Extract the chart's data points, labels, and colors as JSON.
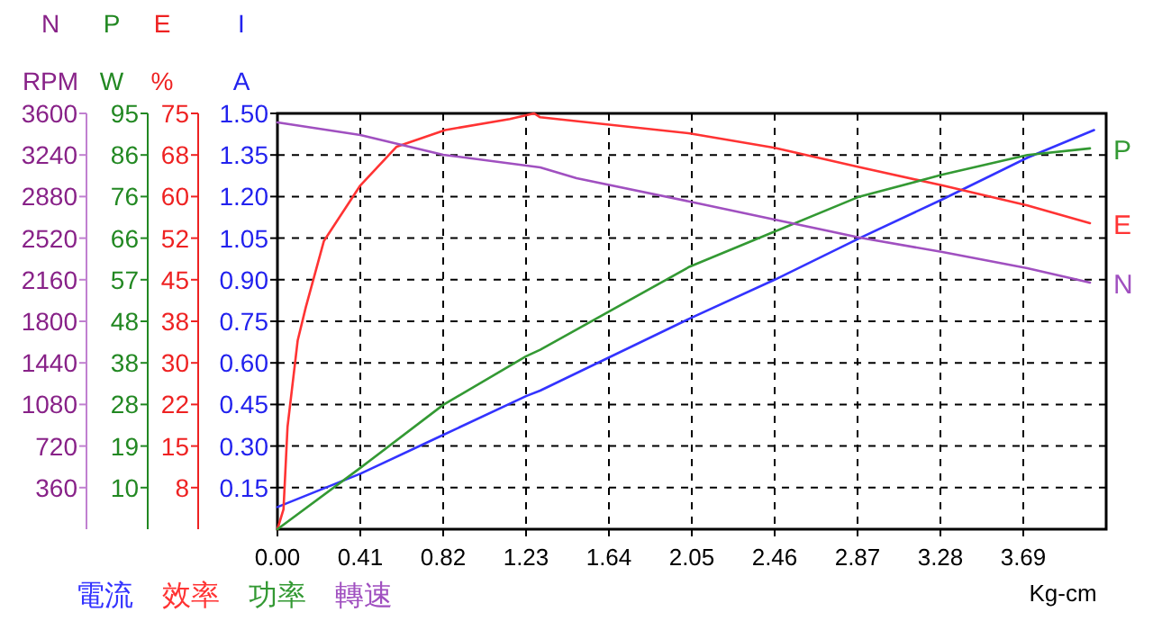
{
  "chart_data": [
    {
      "type": "line",
      "xlabel": "Kg-cm",
      "ylabel": "I\nA",
      "y2label": "E\n%",
      "y3label": "P\nW",
      "xlim": [
        0,
        4.1
      ],
      "xticks": [
        {
          "value": 0,
          "label": "0.00"
        },
        {
          "value": 0.41,
          "label": "0.41"
        },
        {
          "value": 0.82,
          "label": "0.82"
        },
        {
          "value": 1.23,
          "label": "1.23"
        },
        {
          "value": 1.64,
          "label": "1.64"
        },
        {
          "value": 2.05,
          "label": "2.05"
        },
        {
          "value": 2.46,
          "label": "2.46"
        },
        {
          "value": 2.87,
          "label": "2.87"
        },
        {
          "value": 3.28,
          "label": "3.28"
        },
        {
          "value": 3.69,
          "label": "3.69"
        }
      ],
      "ylim": [
        0,
        1.5
      ],
      "yticks": [
        {
          "value": 0.15,
          "label": "0.15"
        },
        {
          "value": 0.3,
          "label": "0.30"
        },
        {
          "value": 0.45,
          "label": "0.45"
        },
        {
          "value": 0.6,
          "label": "0.60"
        },
        {
          "value": 0.75,
          "label": "0.75"
        },
        {
          "value": 0.9,
          "label": "0.90"
        },
        {
          "value": 1.05,
          "label": "1.05"
        },
        {
          "value": 1.2,
          "label": "1.20"
        },
        {
          "value": 1.35,
          "label": "1.35"
        },
        {
          "value": 1.5,
          "label": "1.50"
        }
      ],
      "y2lim": [
        0,
        75
      ],
      "y2ticks": [
        {
          "value": 7.5,
          "label": "8"
        },
        15,
        {
          "value": 22.5,
          "label": "22"
        },
        30,
        {
          "value": 37.5,
          "label": "38"
        },
        45,
        {
          "value": 52.5,
          "label": "52"
        },
        60,
        {
          "value": 67.5,
          "label": "68"
        },
        75
      ],
      "y3lim": [
        0,
        95
      ],
      "y3ticks": [
        {
          "value": 9.5,
          "label": "10"
        },
        19,
        {
          "value": 28.5,
          "label": "28"
        },
        38,
        {
          "value": 47.5,
          "label": "48"
        },
        57,
        {
          "value": 66.5,
          "label": "66"
        },
        76,
        {
          "value": 85.5,
          "label": "86"
        },
        95
      ],
      "grid": true,
      "legend": "bottom",
      "line_style": "solid",
      "marker": "none",
      "series": [
        {
          "name": "電流",
          "color": "#3333ff",
          "x": [
            0,
            0.41,
            0.82,
            1.23,
            1.3,
            2.04,
            2.46,
            2.88,
            3.29,
            3.71,
            4.04
          ],
          "values": [
            0.08,
            0.2,
            0.34,
            0.48,
            0.5,
            0.76,
            0.9,
            1.05,
            1.19,
            1.34,
            1.44
          ]
        },
        {
          "name": "效率",
          "color": "#ff3333",
          "axis": "y2",
          "x": [
            0,
            0.03,
            0.05,
            0.1,
            0.14,
            0.23,
            0.41,
            0.59,
            0.83,
            1.15,
            1.27,
            1.3,
            2.04,
            2.46,
            2.88,
            3.29,
            3.71,
            4.02
          ],
          "values": [
            0,
            3.6,
            18.5,
            34,
            40,
            52,
            62,
            69,
            72,
            74,
            75,
            74.3,
            71.4,
            68.8,
            65.3,
            62,
            58.4,
            55.2
          ]
        },
        {
          "name": "功率",
          "color": "#339933",
          "axis": "y3",
          "x": [
            0,
            0.41,
            0.82,
            1.23,
            1.3,
            2.04,
            2.46,
            2.88,
            3.29,
            3.71,
            4.02
          ],
          "values": [
            0,
            14,
            28.4,
            39.5,
            41,
            60,
            68,
            76,
            81,
            85.5,
            87
          ]
        }
      ],
      "annotations": [
        "E",
        "P"
      ]
    },
    {
      "type": "line",
      "ylabel": "N\nRPM",
      "xlim": [
        0,
        4.1
      ],
      "ylim": [
        0,
        3600
      ],
      "yticks": [
        360,
        720,
        1080,
        1440,
        1800,
        2160,
        2520,
        2880,
        3240,
        3600
      ],
      "tick_labels": "y",
      "legend": "bottom",
      "line_style": "solid",
      "marker": "none",
      "series": [
        {
          "name": "轉速",
          "color": "#a050c0",
          "x": [
            0,
            0.41,
            0.82,
            1.3,
            1.48,
            2.04,
            2.46,
            2.88,
            3.29,
            3.71,
            4.02
          ],
          "values": [
            3522,
            3413,
            3242,
            3132,
            3039,
            2836,
            2681,
            2525,
            2400,
            2260,
            2135
          ]
        }
      ],
      "annotations": [
        "N"
      ]
    }
  ]
}
